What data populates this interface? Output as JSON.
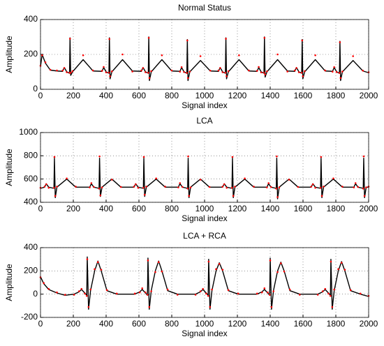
{
  "chart_data": [
    {
      "type": "line",
      "title": "Normal Status",
      "xlabel": "Signal index",
      "ylabel": "Amplitude",
      "xlim": [
        0,
        2000
      ],
      "xticks": [
        0,
        200,
        400,
        600,
        800,
        1000,
        1200,
        1400,
        1600,
        1800,
        2000
      ],
      "ylim": [
        0,
        400
      ],
      "yticks": [
        0,
        200,
        400
      ],
      "grid": true,
      "x": [
        0,
        10,
        30,
        60,
        100,
        135,
        145,
        160,
        177,
        180,
        184,
        195,
        260,
        320,
        375,
        385,
        400,
        417,
        420,
        424,
        435,
        500,
        560,
        615,
        625,
        640,
        657,
        660,
        664,
        675,
        740,
        800,
        850,
        860,
        875,
        892,
        895,
        899,
        910,
        975,
        1035,
        1085,
        1095,
        1110,
        1127,
        1130,
        1134,
        1145,
        1210,
        1270,
        1320,
        1330,
        1345,
        1362,
        1365,
        1369,
        1380,
        1445,
        1505,
        1550,
        1560,
        1575,
        1592,
        1595,
        1599,
        1610,
        1675,
        1735,
        1780,
        1790,
        1805,
        1822,
        1825,
        1829,
        1840,
        1905,
        1965,
        2000
      ],
      "series": [
        {
          "color": "#000000",
          "style": "line",
          "values": [
            130,
            200,
            150,
            110,
            105,
            103,
            125,
            100,
            92,
            295,
            80,
            100,
            170,
            105,
            103,
            125,
            100,
            92,
            295,
            60,
            100,
            170,
            105,
            103,
            125,
            100,
            92,
            300,
            50,
            100,
            170,
            105,
            103,
            125,
            100,
            92,
            285,
            50,
            100,
            165,
            105,
            103,
            125,
            100,
            92,
            295,
            60,
            100,
            170,
            105,
            103,
            125,
            100,
            92,
            300,
            70,
            100,
            170,
            105,
            103,
            125,
            100,
            92,
            285,
            60,
            100,
            170,
            105,
            103,
            125,
            100,
            92,
            275,
            50,
            100,
            165,
            105,
            95
          ]
        },
        {
          "color": "#ff0000",
          "style": "dots",
          "values": [
            135,
            195,
            155,
            112,
            108,
            108,
            122,
            98,
            95,
            290,
            95,
            104,
            195,
            108,
            106,
            128,
            97,
            96,
            288,
            75,
            103,
            200,
            102,
            108,
            122,
            98,
            95,
            295,
            65,
            104,
            195,
            108,
            101,
            127,
            99,
            94,
            280,
            65,
            102,
            190,
            107,
            108,
            122,
            98,
            95,
            290,
            75,
            104,
            195,
            108,
            106,
            128,
            97,
            96,
            295,
            85,
            103,
            200,
            102,
            108,
            122,
            98,
            95,
            280,
            75,
            104,
            195,
            108,
            101,
            127,
            99,
            94,
            270,
            65,
            102,
            190,
            107,
            98
          ]
        }
      ]
    },
    {
      "type": "line",
      "title": "LCA",
      "xlabel": "Signal index",
      "ylabel": "Amplitude",
      "xlim": [
        0,
        2000
      ],
      "xticks": [
        0,
        200,
        400,
        600,
        800,
        1000,
        1200,
        1400,
        1600,
        1800,
        2000
      ],
      "ylim": [
        400,
        1000
      ],
      "yticks": [
        400,
        600,
        800,
        1000
      ],
      "grid": true,
      "x": [
        0,
        25,
        35,
        50,
        82,
        85,
        90,
        100,
        160,
        215,
        300,
        310,
        325,
        357,
        360,
        365,
        375,
        435,
        490,
        570,
        580,
        595,
        627,
        630,
        635,
        645,
        705,
        760,
        840,
        850,
        865,
        897,
        900,
        905,
        915,
        975,
        1030,
        1110,
        1120,
        1135,
        1167,
        1170,
        1175,
        1185,
        1245,
        1300,
        1380,
        1390,
        1405,
        1437,
        1440,
        1445,
        1455,
        1515,
        1570,
        1650,
        1660,
        1675,
        1707,
        1710,
        1715,
        1725,
        1785,
        1840,
        1910,
        1920,
        1935,
        1967,
        1970,
        1975,
        1985,
        2000
      ],
      "series": [
        {
          "color": "#000000",
          "style": "line",
          "values": [
            520,
            530,
            560,
            530,
            520,
            780,
            440,
            530,
            600,
            530,
            530,
            560,
            530,
            520,
            780,
            450,
            530,
            600,
            530,
            530,
            560,
            530,
            520,
            780,
            450,
            530,
            600,
            530,
            530,
            560,
            530,
            520,
            780,
            440,
            530,
            600,
            530,
            530,
            560,
            530,
            520,
            780,
            440,
            530,
            600,
            530,
            530,
            560,
            530,
            520,
            780,
            430,
            530,
            600,
            530,
            530,
            560,
            530,
            520,
            780,
            440,
            530,
            600,
            530,
            530,
            560,
            530,
            520,
            780,
            440,
            530,
            530
          ]
        },
        {
          "color": "#ff0000",
          "style": "dots",
          "values": [
            525,
            535,
            555,
            525,
            525,
            790,
            455,
            535,
            605,
            535,
            528,
            565,
            532,
            518,
            795,
            460,
            528,
            595,
            532,
            535,
            555,
            525,
            525,
            790,
            465,
            535,
            605,
            535,
            528,
            565,
            532,
            518,
            795,
            455,
            528,
            595,
            532,
            535,
            555,
            525,
            525,
            790,
            455,
            535,
            605,
            535,
            528,
            565,
            532,
            518,
            795,
            445,
            528,
            595,
            532,
            535,
            555,
            525,
            525,
            790,
            455,
            535,
            605,
            535,
            528,
            565,
            532,
            518,
            795,
            455,
            528,
            535
          ]
        }
      ]
    },
    {
      "type": "line",
      "title": "LCA + RCA",
      "xlabel": "Signal index",
      "ylabel": "Amplitude",
      "xlim": [
        0,
        2000
      ],
      "xticks": [
        0,
        200,
        400,
        600,
        800,
        1000,
        1200,
        1400,
        1600,
        1800,
        2000
      ],
      "ylim": [
        -200,
        400
      ],
      "yticks": [
        -200,
        0,
        200,
        400
      ],
      "grid": true,
      "x": [
        0,
        20,
        50,
        100,
        150,
        205,
        235,
        250,
        270,
        282,
        285,
        293,
        305,
        330,
        350,
        370,
        405,
        465,
        575,
        605,
        620,
        640,
        652,
        655,
        663,
        675,
        700,
        720,
        740,
        775,
        835,
        945,
        975,
        990,
        1010,
        1022,
        1025,
        1033,
        1045,
        1070,
        1090,
        1110,
        1145,
        1205,
        1320,
        1350,
        1365,
        1385,
        1397,
        1400,
        1408,
        1420,
        1445,
        1465,
        1485,
        1520,
        1580,
        1690,
        1720,
        1735,
        1755,
        1767,
        1770,
        1778,
        1790,
        1815,
        1835,
        1855,
        1890,
        1950,
        2000
      ],
      "series": [
        {
          "color": "#000000",
          "style": "line",
          "values": [
            150,
            90,
            40,
            10,
            -10,
            0,
            20,
            40,
            10,
            -10,
            320,
            -130,
            30,
            200,
            285,
            200,
            30,
            0,
            0,
            20,
            40,
            10,
            -10,
            310,
            -130,
            30,
            200,
            285,
            200,
            30,
            0,
            0,
            20,
            40,
            10,
            -10,
            300,
            -130,
            30,
            200,
            270,
            200,
            30,
            0,
            0,
            20,
            40,
            10,
            -10,
            310,
            -130,
            30,
            200,
            275,
            200,
            30,
            0,
            0,
            20,
            40,
            10,
            -10,
            300,
            -130,
            30,
            200,
            280,
            200,
            30,
            0,
            -20
          ]
        },
        {
          "color": "#ff0000",
          "style": "dots",
          "values": [
            145,
            95,
            45,
            15,
            -5,
            -5,
            25,
            45,
            5,
            -15,
            300,
            -110,
            40,
            215,
            275,
            210,
            35,
            5,
            5,
            15,
            50,
            15,
            -5,
            290,
            -110,
            25,
            190,
            275,
            195,
            40,
            -5,
            -5,
            25,
            45,
            5,
            -15,
            280,
            -110,
            40,
            215,
            260,
            210,
            35,
            5,
            5,
            15,
            50,
            15,
            -5,
            290,
            -110,
            25,
            190,
            265,
            195,
            40,
            -5,
            -5,
            25,
            45,
            5,
            -15,
            280,
            -110,
            40,
            215,
            270,
            210,
            35,
            5,
            -15
          ]
        }
      ]
    }
  ]
}
